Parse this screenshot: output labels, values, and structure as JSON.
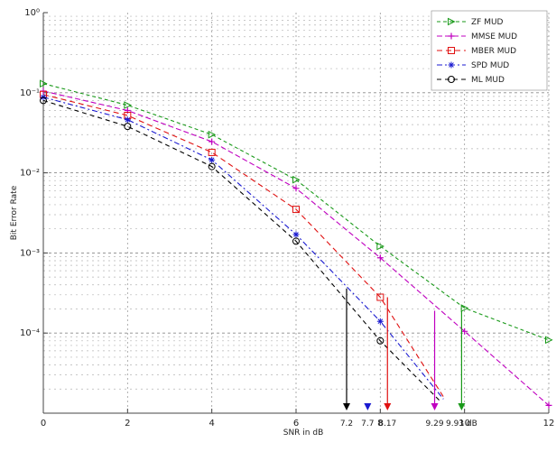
{
  "chart_data": {
    "type": "line",
    "title": "",
    "xlabel": "SNR in dB",
    "ylabel": "Bit Error Rate",
    "xlim": [
      0,
      12
    ],
    "ylim_log10": [
      -5,
      0
    ],
    "y_scale": "log",
    "grid": true,
    "legend_position": "top-right",
    "x_ticks": [
      {
        "value": 0,
        "label": "0"
      },
      {
        "value": 2,
        "label": "2"
      },
      {
        "value": 4,
        "label": "4"
      },
      {
        "value": 6,
        "label": "6"
      },
      {
        "value": 8,
        "label": "8"
      },
      {
        "value": 10,
        "label": "10"
      },
      {
        "value": 12,
        "label": "12"
      }
    ],
    "y_ticks": [
      {
        "value": 1,
        "label": "10⁰"
      },
      {
        "value": 0.1,
        "label": "10⁻¹"
      },
      {
        "value": 0.01,
        "label": "10⁻²"
      },
      {
        "value": 0.001,
        "label": "10⁻³"
      },
      {
        "value": 0.0001,
        "label": "10⁻⁴"
      }
    ],
    "series": [
      {
        "name": "ZF MUD",
        "color": "#1a9a1a",
        "dash": "4 3",
        "marker": "triangle-right",
        "x": [
          0,
          2,
          4,
          6,
          8,
          10,
          12
        ],
        "y": [
          0.13,
          0.07,
          0.03,
          0.0082,
          0.00121,
          0.000205,
          8.2e-05
        ]
      },
      {
        "name": "MMSE MUD",
        "color": "#c000c0",
        "dash": "6 3",
        "marker": "plus",
        "x": [
          0,
          2,
          4,
          6,
          8,
          10,
          12
        ],
        "y": [
          0.105,
          0.06,
          0.0245,
          0.0064,
          0.00087,
          0.000105,
          1.25e-05
        ]
      },
      {
        "name": "MBER MUD",
        "color": "#e01010",
        "dash": "6 4",
        "marker": "square",
        "x": [
          0,
          2,
          4,
          6,
          8,
          9.5
        ],
        "y": [
          0.095,
          0.052,
          0.018,
          0.0035,
          0.00028,
          1.6e-05
        ]
      },
      {
        "name": "SPD MUD",
        "color": "#1a1ad0",
        "dash": "6 3 2 3",
        "marker": "star",
        "x": [
          0,
          2,
          4,
          6,
          8,
          9.5
        ],
        "y": [
          0.088,
          0.046,
          0.0145,
          0.0017,
          0.00014,
          1.5e-05
        ]
      },
      {
        "name": "ML MUD",
        "color": "#000000",
        "dash": "5 4",
        "marker": "circle",
        "x": [
          0,
          2,
          4,
          6,
          8,
          9.4
        ],
        "y": [
          0.08,
          0.038,
          0.012,
          0.0014,
          8e-05,
          1.45e-05
        ]
      }
    ],
    "annotations": [
      {
        "label": "7.2",
        "x": 7.2,
        "color": "#000000"
      },
      {
        "label": "7.7",
        "x": 7.7,
        "color": "#1a1ad0"
      },
      {
        "label": "8.17",
        "x": 8.17,
        "color": "#e01010"
      },
      {
        "label": "9.29",
        "x": 9.29,
        "color": "#c000c0"
      },
      {
        "label": "9.93 dB",
        "x": 9.93,
        "color": "#1a9a1a"
      }
    ]
  }
}
